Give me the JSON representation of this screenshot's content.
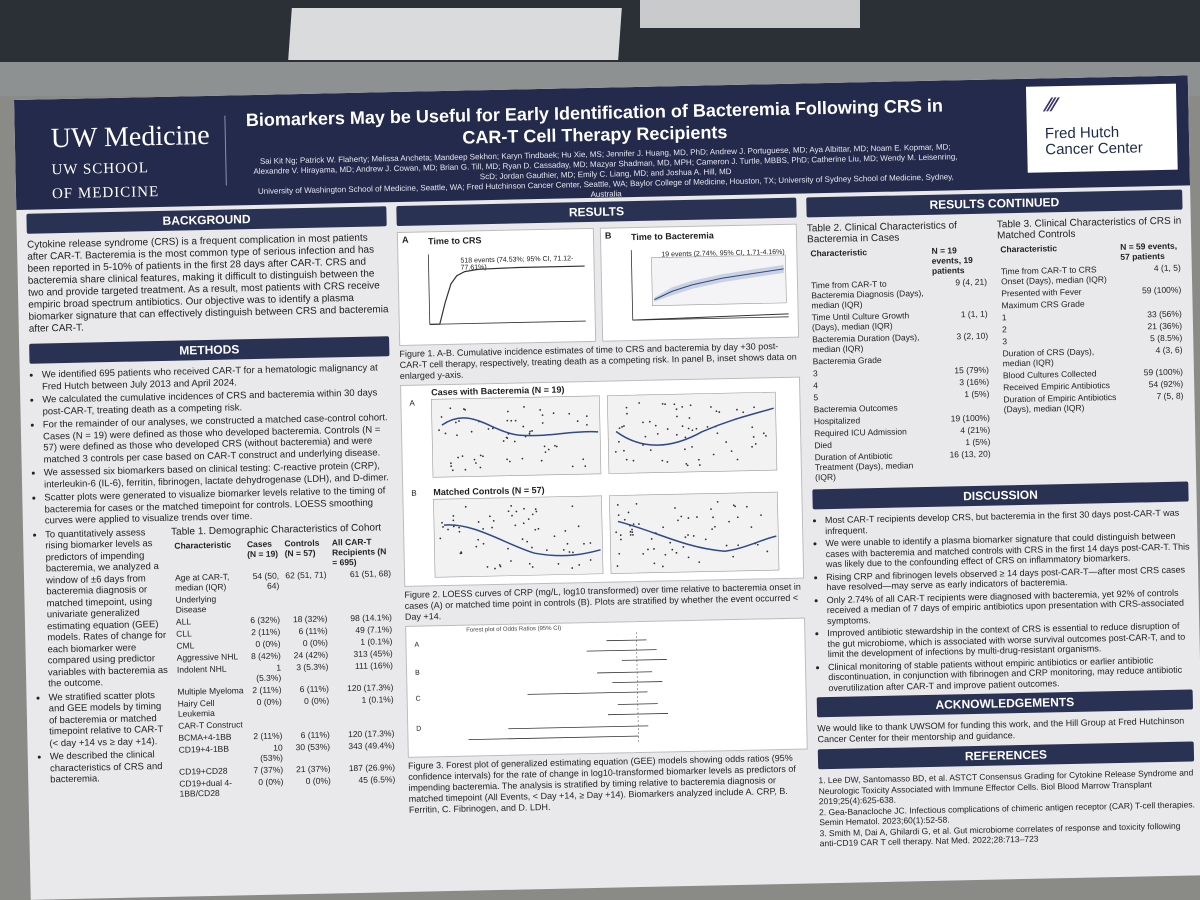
{
  "header": {
    "uw_name": "UW Medicine",
    "uw_school_line1": "UW SCHOOL",
    "uw_school_line2": "OF MEDICINE",
    "title_line1": "Biomarkers May be Useful for Early Identification of Bacteremia Following CRS in",
    "title_line2": "CAR-T Cell Therapy Recipients",
    "authors": "Sai Kit Ng; Patrick W. Flaherty; Melissa Ancheta; Mandeep Sekhon; Karyn Tindbaek; Hu Xie, MS; Jennifer J. Huang, MD, PhD; Andrew J. Portuguese, MD; Aya Albittar, MD; Noam E. Kopmar, MD; Alexandre V. Hirayama, MD; Andrew J. Cowan, MD; Brian G. Till, MD; Ryan D. Cassaday, MD; Mazyar Shadman, MD, MPH; Cameron J. Turtle, MBBS, PhD; Catherine Liu, MD; Wendy M. Leisenring, ScD; Jordan Gauthier, MD; Emily C. Liang, MD; and Joshua A. Hill, MD",
    "affiliations": "University of Washington School of Medicine, Seattle, WA; Fred Hutchinson Cancer Center, Seattle, WA; Baylor College of Medicine, Houston, TX; University of Sydney School of Medicine, Sydney, Australia",
    "hutch_line1": "Fred Hutch",
    "hutch_line2": "Cancer Center"
  },
  "background": {
    "heading": "BACKGROUND",
    "text": "Cytokine release syndrome (CRS) is a frequent complication in most patients after CAR-T. Bacteremia is the most common type of serious infection and has been reported in 5-10% of patients in the first 28 days after CAR-T. CRS and bacteremia share clinical features, making it difficult to distinguish between the two and provide targeted treatment. As a result, most patients with CRS receive empiric broad spectrum antibiotics. Our objective was to identify a plasma biomarker signature that can effectively distinguish between CRS and bacteremia after CAR-T."
  },
  "methods": {
    "heading": "METHODS",
    "bullets": [
      "We identified 695 patients who received CAR-T for a hematologic malignancy at Fred Hutch between July 2013 and April 2024.",
      "We calculated the cumulative incidences of CRS and bacteremia within 30 days post-CAR-T, treating death as a competing risk.",
      "For the remainder of our analyses, we constructed a matched case-control cohort. Cases (N = 19) were defined as those who developed bacteremia. Controls (N = 57) were defined as those who developed CRS (without bacteremia) and were matched 3 controls per case based on CAR-T construct and underlying disease.",
      "We assessed six biomarkers based on clinical testing: C-reactive protein (CRP), interleukin-6 (IL-6), ferritin, fibrinogen, lactate dehydrogenase (LDH), and D-dimer.",
      "Scatter plots were generated to visualize biomarker levels relative to the timing of bacteremia for cases or the matched timepoint for controls. LOESS smoothing curves were applied to visualize trends over time.",
      "To quantitatively assess rising biomarker levels as predictors of impending bacteremia, we analyzed a window of ±6 days from bacteremia diagnosis or matched timepoint, using univariate generalized estimating equation (GEE) models. Rates of change for each biomarker were compared using predictor variables with bacteremia as the outcome.",
      "We stratified scatter plots and GEE models by timing of bacteremia or matched timepoint relative to CAR-T (< day +14 vs ≥ day +14).",
      "We described the clinical characteristics of CRS and bacteremia."
    ]
  },
  "table1": {
    "title": "Table 1. Demographic Characteristics of Cohort",
    "headers": [
      "Characteristic",
      "Cases (N = 19)",
      "Controls (N = 57)",
      "All CAR-T Recipients (N = 695)"
    ],
    "rows": [
      [
        "Age at CAR-T, median (IQR)",
        "54 (50, 64)",
        "62 (51, 71)",
        "61 (51, 68)"
      ],
      [
        "Underlying Disease",
        "",
        "",
        ""
      ],
      [
        "ALL",
        "6 (32%)",
        "18 (32%)",
        "98 (14.1%)"
      ],
      [
        "CLL",
        "2 (11%)",
        "6 (11%)",
        "49 (7.1%)"
      ],
      [
        "CML",
        "0 (0%)",
        "0 (0%)",
        "1 (0.1%)"
      ],
      [
        "Aggressive NHL",
        "8 (42%)",
        "24 (42%)",
        "313 (45%)"
      ],
      [
        "Indolent NHL",
        "1 (5.3%)",
        "3 (5.3%)",
        "111 (16%)"
      ],
      [
        "Multiple Myeloma",
        "2 (11%)",
        "6 (11%)",
        "120 (17.3%)"
      ],
      [
        "Hairy Cell Leukemia",
        "0 (0%)",
        "0 (0%)",
        "1 (0.1%)"
      ],
      [
        "CAR-T Construct",
        "",
        "",
        ""
      ],
      [
        "BCMA+4-1BB",
        "2 (11%)",
        "6 (11%)",
        "120 (17.3%)"
      ],
      [
        "CD19+4-1BB",
        "10 (53%)",
        "30 (53%)",
        "343 (49.4%)"
      ],
      [
        "CD19+CD28",
        "7 (37%)",
        "21 (37%)",
        "187 (26.9%)"
      ],
      [
        "CD19+dual 4-1BB/CD28",
        "0 (0%)",
        "0 (0%)",
        "45 (6.5%)"
      ]
    ]
  },
  "results": {
    "heading": "RESULTS",
    "panel_a_label": "A",
    "panel_a_title": "Time to CRS",
    "panel_a_annotation": "518 events (74.53%; 95% CI, 71.12-77.61%)",
    "panel_b_label": "B",
    "panel_b_title": "Time to Bacteremia",
    "panel_b_annotation": "19 events (2.74%, 95% CI, 1.71-4.16%)",
    "fig1_caption": "Figure 1. A-B. Cumulative incidence estimates of time to CRS and bacteremia by day +30 post-CAR-T cell therapy, respectively, treating death as a competing risk. In panel B, inset shows data on enlarged y-axis.",
    "fig2_cases_title": "Cases with Bacteremia (N = 19)",
    "fig2_controls_title": "Matched Controls (N = 57)",
    "fig2_caption": "Figure 2. LOESS curves of CRP (mg/L, log10 transformed) over time relative to bacteremia onset in cases (A) or matched time point in controls (B). Plots are stratified by whether the event occurred < Day +14.",
    "fig3_title": "Forest plot of Odds Ratios (95% CI)",
    "fig3_caption": "Figure 3. Forest plot of generalized estimating equation (GEE) models showing odds ratios (95% confidence intervals) for the rate of change in log10-transformed biomarker levels as predictors of impending bacteremia. The analysis is stratified by timing relative to bacteremia diagnosis or matched timepoint (All Events, < Day +14, ≥ Day +14). Biomarkers analyzed include A. CRP, B. Ferritin, C. Fibrinogen, and D. LDH."
  },
  "results_continued": {
    "heading": "RESULTS CONTINUED",
    "table2_title": "Table 2. Clinical Characteristics of Bacteremia in Cases",
    "table2_headers": [
      "Characteristic",
      "N = 19 events, 19 patients"
    ],
    "table2_rows": [
      [
        "Time from CAR-T to Bacteremia Diagnosis (Days), median (IQR)",
        "9 (4, 21)"
      ],
      [
        "Time Until Culture Growth (Days), median (IQR)",
        "1 (1, 1)"
      ],
      [
        "Bacteremia Duration (Days), median (IQR)",
        "3 (2, 10)"
      ],
      [
        "Bacteremia Grade",
        ""
      ],
      [
        "3",
        "15 (79%)"
      ],
      [
        "4",
        "3 (16%)"
      ],
      [
        "5",
        "1 (5%)"
      ],
      [
        "Bacteremia Outcomes",
        ""
      ],
      [
        "Hospitalized",
        "19 (100%)"
      ],
      [
        "Required ICU Admission",
        "4 (21%)"
      ],
      [
        "Died",
        "1 (5%)"
      ],
      [
        "Duration of Antibiotic Treatment (Days), median (IQR)",
        "16 (13, 20)"
      ]
    ],
    "table3_title": "Table 3. Clinical Characteristics of CRS in Matched Controls",
    "table3_headers": [
      "Characteristic",
      "N = 59 events, 57 patients"
    ],
    "table3_rows": [
      [
        "Time from CAR-T to CRS Onset (Days), median (IQR)",
        "4 (1, 5)"
      ],
      [
        "Presented with Fever",
        "59 (100%)"
      ],
      [
        "Maximum CRS Grade",
        ""
      ],
      [
        "1",
        "33 (56%)"
      ],
      [
        "2",
        "21 (36%)"
      ],
      [
        "3",
        "5 (8.5%)"
      ],
      [
        "Duration of CRS (Days), median (IQR)",
        "4 (3, 6)"
      ],
      [
        "Blood Cultures Collected",
        "59 (100%)"
      ],
      [
        "Received Empiric Antibiotics",
        "54 (92%)"
      ],
      [
        "Duration of Empiric Antibiotics (Days), median (IQR)",
        "7 (5, 8)"
      ]
    ]
  },
  "discussion": {
    "heading": "DISCUSSION",
    "bullets": [
      "Most CAR-T recipients develop CRS, but bacteremia in the first 30 days post-CAR-T was infrequent.",
      "We were unable to identify a plasma biomarker signature that could distinguish between cases with bacteremia and matched controls with CRS in the first 14 days post-CAR-T. This was likely due to the confounding effect of CRS on inflammatory biomarkers.",
      "Rising CRP and fibrinogen levels observed ≥ 14 days post-CAR-T—after most CRS cases have resolved—may serve as early indicators of bacteremia.",
      "Only 2.74% of all CAR-T recipients were diagnosed with bacteremia, yet 92% of controls received a median of 7 days of empiric antibiotics upon presentation with CRS-associated symptoms.",
      "Improved antibiotic stewardship in the context of CRS is essential to reduce disruption of the gut microbiome, which is associated with worse survival outcomes post-CAR-T, and to limit the development of infections by multi-drug-resistant organisms.",
      "Clinical monitoring of stable patients without empiric antibiotics or earlier antibiotic discontinuation, in conjunction with fibrinogen and CRP monitoring, may reduce antibiotic overutilization after CAR-T and improve patient outcomes."
    ]
  },
  "acknowledgements": {
    "heading": "ACKNOWLEDGEMENTS",
    "text": "We would like to thank UWSOM for funding this work, and the Hill Group at Fred Hutchinson Cancer Center for their mentorship and guidance."
  },
  "references": {
    "heading": "REFERENCES",
    "items": [
      "1. Lee DW, Santomasso BD, et al. ASTCT Consensus Grading for Cytokine Release Syndrome and Neurologic Toxicity Associated with Immune Effector Cells. Biol Blood Marrow Transplant 2019;25(4):625-638.",
      "2. Gea-Banacloche JC. Infectious complications of chimeric antigen receptor (CAR) T-cell therapies. Semin Hematol. 2023;60(1):52-58.",
      "3. Smith M, Dai A, Ghilardi G, et al. Gut microbiome correlates of response and toxicity following anti-CD19 CAR T cell therapy. Nat Med. 2022;28:713–723"
    ]
  }
}
